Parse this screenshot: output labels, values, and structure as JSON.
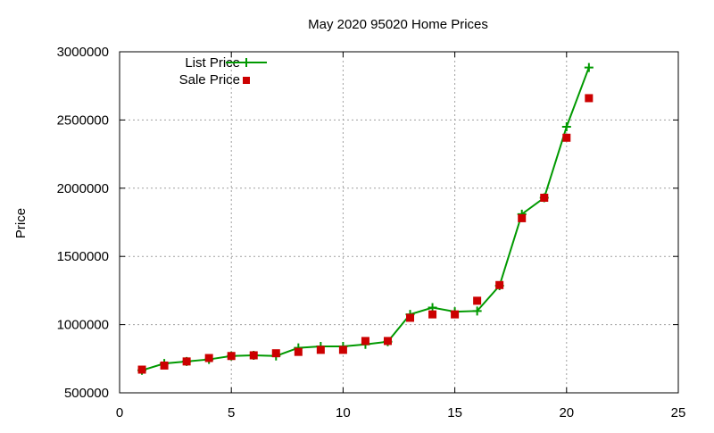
{
  "chart_data": {
    "type": "line",
    "title": "May 2020 95020 Home Prices",
    "xlabel": "",
    "ylabel": "Price",
    "xlim": [
      0,
      25
    ],
    "ylim": [
      500000,
      3000000
    ],
    "xticks": [
      0,
      5,
      10,
      15,
      20,
      25
    ],
    "yticks": [
      500000,
      1000000,
      1500000,
      2000000,
      2500000,
      3000000
    ],
    "grid": true,
    "legend_position": "top-left",
    "x": [
      1,
      2,
      3,
      4,
      5,
      6,
      7,
      8,
      9,
      10,
      11,
      12,
      13,
      14,
      15,
      16,
      17,
      18,
      19,
      20,
      21
    ],
    "series": [
      {
        "name": "List Price",
        "style": "linespoints",
        "marker": "plus",
        "color": "#009900",
        "values": [
          665000,
          715000,
          730000,
          745000,
          770000,
          775000,
          770000,
          830000,
          840000,
          840000,
          855000,
          875000,
          1075000,
          1125000,
          1095000,
          1100000,
          1285000,
          1810000,
          1930000,
          2450000,
          2885000
        ]
      },
      {
        "name": "Sale Price",
        "style": "points",
        "marker": "square",
        "color": "#cc0000",
        "values": [
          670000,
          700000,
          730000,
          755000,
          770000,
          775000,
          790000,
          800000,
          815000,
          815000,
          880000,
          880000,
          1050000,
          1075000,
          1075000,
          1175000,
          1290000,
          1780000,
          1930000,
          2370000,
          2660000
        ]
      }
    ]
  }
}
